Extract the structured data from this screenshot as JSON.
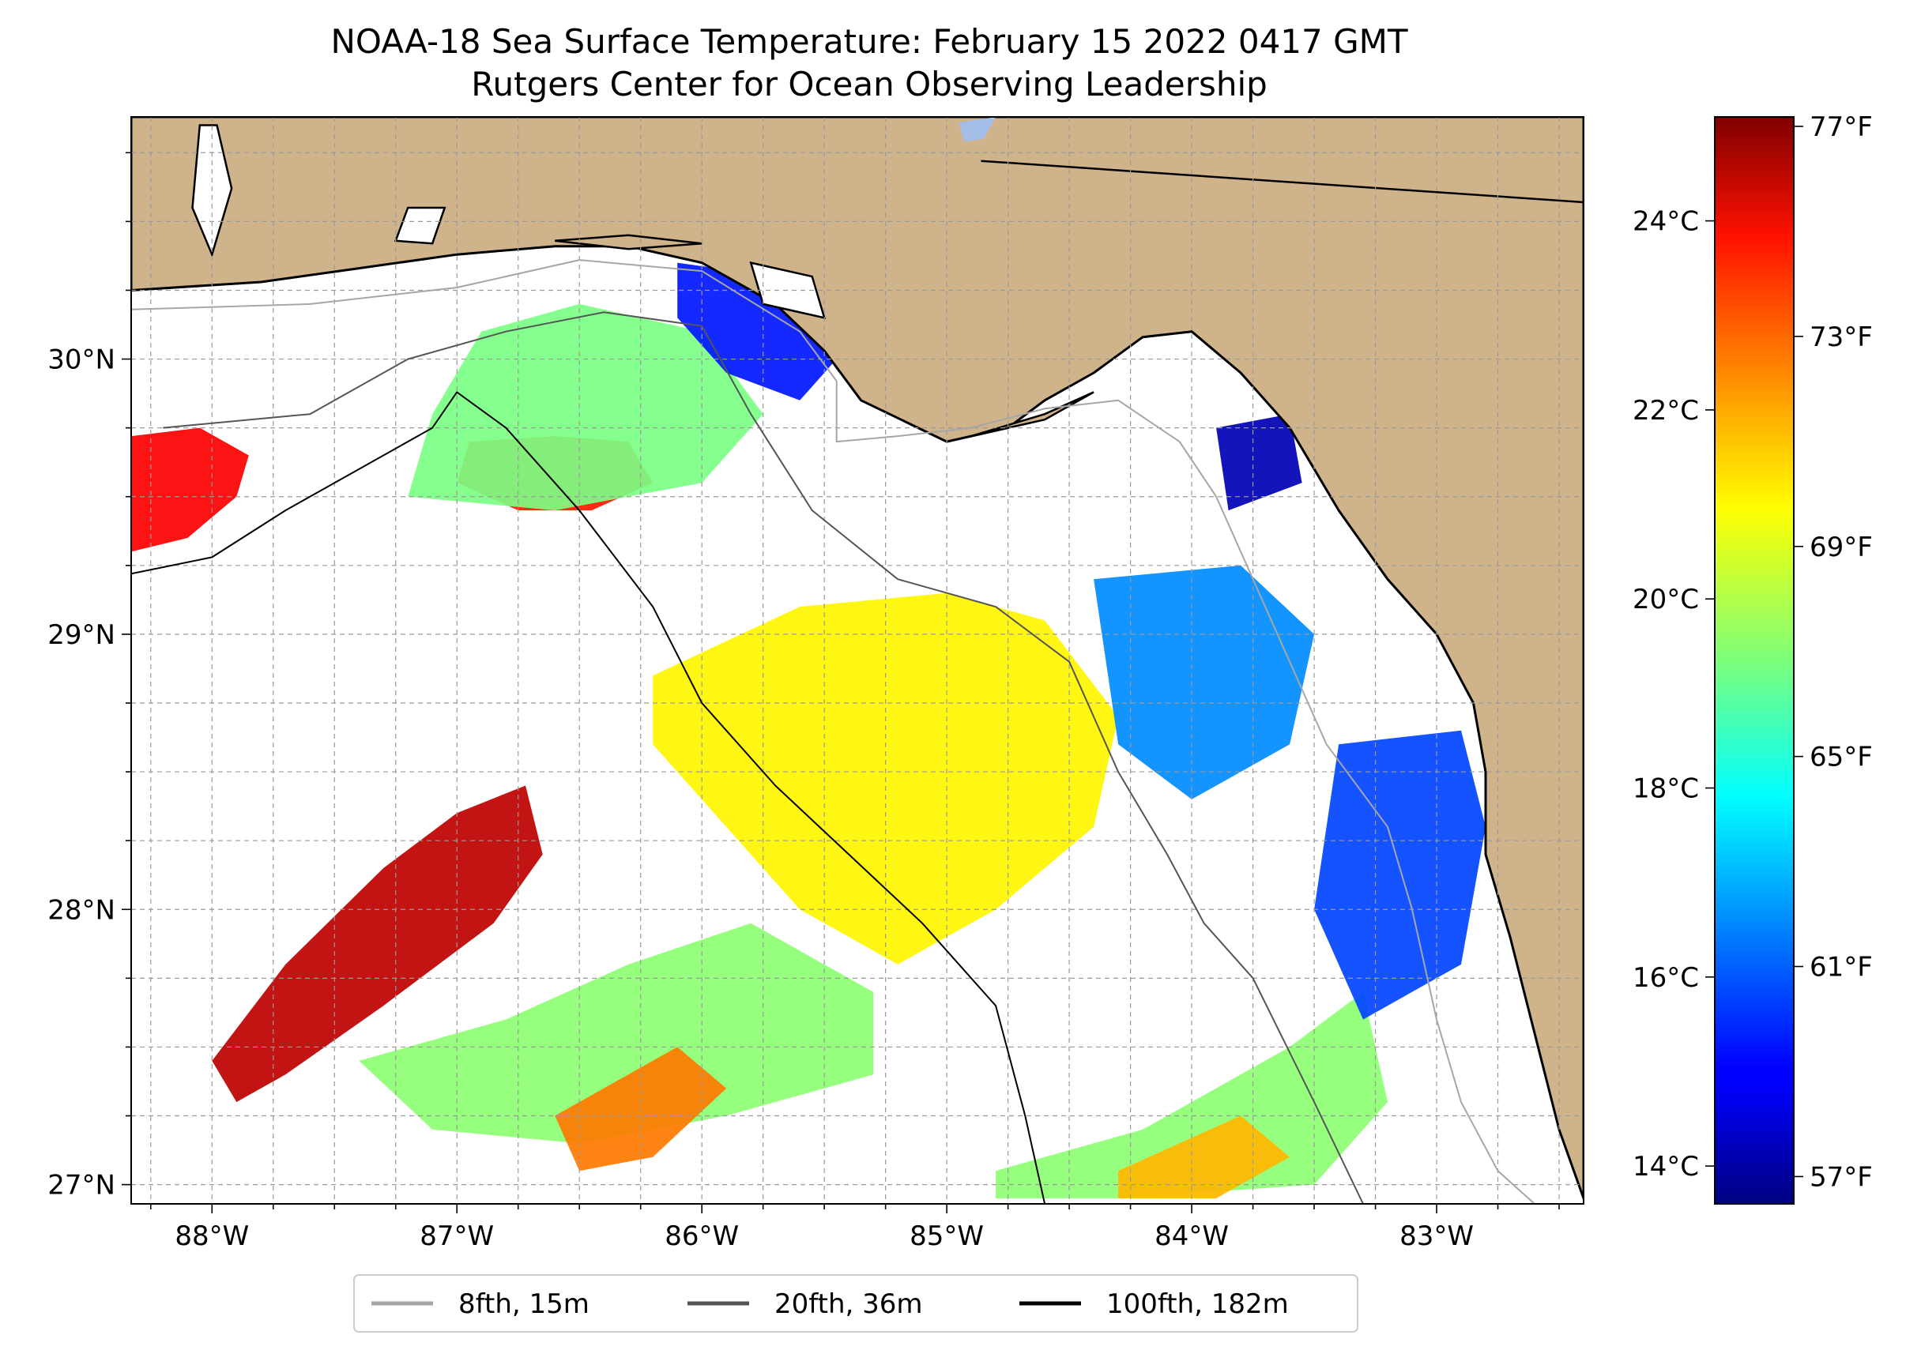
{
  "title": "NOAA-18 Sea Surface Temperature: February 15 2022 0417 GMT",
  "subtitle": "Rutgers Center for Ocean Observing Leadership",
  "colors": {
    "land": "#cfb38b",
    "lake": "#a4bde6",
    "coast": "#000000",
    "grid": "#9a9a9a",
    "iso_8fth": "#a6a6a6",
    "iso_20fth": "#555555",
    "iso_100fth": "#000000"
  },
  "map": {
    "lon_range": [
      -88.33,
      -82.4
    ],
    "lat_range": [
      26.93,
      30.88
    ],
    "lon_ticks": [
      {
        "value": -88,
        "label": "88°W"
      },
      {
        "value": -87,
        "label": "87°W"
      },
      {
        "value": -86,
        "label": "86°W"
      },
      {
        "value": -85,
        "label": "85°W"
      },
      {
        "value": -84,
        "label": "84°W"
      },
      {
        "value": -83,
        "label": "83°W"
      }
    ],
    "lat_ticks": [
      {
        "value": 27,
        "label": "27°N"
      },
      {
        "value": 28,
        "label": "28°N"
      },
      {
        "value": 29,
        "label": "29°N"
      },
      {
        "value": 30,
        "label": "30°N"
      }
    ],
    "grid_step_deg": 0.25
  },
  "colorbar": {
    "range_c": [
      13.6,
      25.1
    ],
    "celsius_ticks": [
      {
        "value": 14,
        "label": "14°C"
      },
      {
        "value": 16,
        "label": "16°C"
      },
      {
        "value": 18,
        "label": "18°C"
      },
      {
        "value": 20,
        "label": "20°C"
      },
      {
        "value": 22,
        "label": "22°C"
      },
      {
        "value": 24,
        "label": "24°C"
      }
    ],
    "fahrenheit_ticks": [
      {
        "value": 57,
        "label": "57°F"
      },
      {
        "value": 61,
        "label": "61°F"
      },
      {
        "value": 65,
        "label": "65°F"
      },
      {
        "value": 69,
        "label": "69°F"
      },
      {
        "value": 73,
        "label": "73°F"
      },
      {
        "value": 77,
        "label": "77°F"
      }
    ],
    "colormap": "jet"
  },
  "legend": {
    "placement": "bottom-center",
    "items": [
      {
        "label": "8fth, 15m",
        "color": "#a6a6a6"
      },
      {
        "label": "20fth, 36m",
        "color": "#555555"
      },
      {
        "label": "100fth, 182m",
        "color": "#000000"
      }
    ]
  },
  "sst_patches": [
    {
      "name": "sst-patch-deep-red-band",
      "c": 24.4,
      "poly": [
        [
          -88.0,
          27.45
        ],
        [
          -87.7,
          27.8
        ],
        [
          -87.3,
          28.15
        ],
        [
          -87.0,
          28.35
        ],
        [
          -86.72,
          28.45
        ],
        [
          -86.65,
          28.2
        ],
        [
          -86.85,
          27.95
        ],
        [
          -87.3,
          27.65
        ],
        [
          -87.7,
          27.4
        ],
        [
          -87.9,
          27.3
        ]
      ]
    },
    {
      "name": "sst-patch-northwest-red",
      "c": 23.7,
      "poly": [
        [
          -88.33,
          29.3
        ],
        [
          -88.1,
          29.35
        ],
        [
          -87.9,
          29.5
        ],
        [
          -87.85,
          29.65
        ],
        [
          -88.05,
          29.75
        ],
        [
          -88.33,
          29.72
        ]
      ]
    },
    {
      "name": "sst-patch-coast-red",
      "c": 23.4,
      "poly": [
        [
          -87.0,
          29.55
        ],
        [
          -86.75,
          29.45
        ],
        [
          -86.45,
          29.45
        ],
        [
          -86.2,
          29.55
        ],
        [
          -86.3,
          29.7
        ],
        [
          -86.6,
          29.72
        ],
        [
          -86.95,
          29.7
        ]
      ]
    },
    {
      "name": "sst-patch-northern-green",
      "c": 19.3,
      "poly": [
        [
          -87.2,
          29.5
        ],
        [
          -86.6,
          29.45
        ],
        [
          -86.0,
          29.55
        ],
        [
          -85.75,
          29.8
        ],
        [
          -86.0,
          30.1
        ],
        [
          -86.5,
          30.2
        ],
        [
          -86.9,
          30.1
        ],
        [
          -87.1,
          29.8
        ]
      ]
    },
    {
      "name": "sst-patch-panhandle-blue",
      "c": 15.3,
      "poly": [
        [
          -86.1,
          30.35
        ],
        [
          -85.7,
          30.3
        ],
        [
          -85.4,
          30.05
        ],
        [
          -85.6,
          29.85
        ],
        [
          -85.9,
          29.95
        ],
        [
          -86.1,
          30.15
        ]
      ]
    },
    {
      "name": "sst-patch-central-yellow",
      "c": 20.9,
      "poly": [
        [
          -86.2,
          28.85
        ],
        [
          -85.6,
          29.1
        ],
        [
          -85.0,
          29.15
        ],
        [
          -84.6,
          29.05
        ],
        [
          -84.3,
          28.7
        ],
        [
          -84.4,
          28.3
        ],
        [
          -84.8,
          28.0
        ],
        [
          -85.2,
          27.8
        ],
        [
          -85.6,
          28.0
        ],
        [
          -85.9,
          28.3
        ],
        [
          -86.2,
          28.6
        ]
      ]
    },
    {
      "name": "sst-patch-southwest-green",
      "c": 19.5,
      "poly": [
        [
          -87.4,
          27.45
        ],
        [
          -86.8,
          27.6
        ],
        [
          -86.3,
          27.8
        ],
        [
          -85.8,
          27.95
        ],
        [
          -85.3,
          27.7
        ],
        [
          -85.3,
          27.4
        ],
        [
          -85.9,
          27.25
        ],
        [
          -86.5,
          27.15
        ],
        [
          -87.1,
          27.2
        ]
      ]
    },
    {
      "name": "sst-patch-southwest-orange",
      "c": 22.3,
      "poly": [
        [
          -86.6,
          27.25
        ],
        [
          -86.1,
          27.5
        ],
        [
          -85.9,
          27.35
        ],
        [
          -86.2,
          27.1
        ],
        [
          -86.5,
          27.05
        ]
      ]
    },
    {
      "name": "sst-patch-south-green",
      "c": 19.5,
      "poly": [
        [
          -84.8,
          27.05
        ],
        [
          -84.2,
          27.2
        ],
        [
          -83.6,
          27.5
        ],
        [
          -83.3,
          27.7
        ],
        [
          -83.2,
          27.3
        ],
        [
          -83.5,
          27.0
        ],
        [
          -84.3,
          26.95
        ],
        [
          -84.8,
          26.95
        ]
      ]
    },
    {
      "name": "sst-patch-south-orange",
      "c": 21.6,
      "poly": [
        [
          -84.3,
          27.05
        ],
        [
          -83.8,
          27.25
        ],
        [
          -83.6,
          27.1
        ],
        [
          -83.9,
          26.95
        ],
        [
          -84.3,
          26.95
        ]
      ]
    },
    {
      "name": "sst-patch-bigbend-blue",
      "c": 16.6,
      "poly": [
        [
          -84.4,
          29.2
        ],
        [
          -83.8,
          29.25
        ],
        [
          -83.5,
          29.0
        ],
        [
          -83.6,
          28.6
        ],
        [
          -84.0,
          28.4
        ],
        [
          -84.3,
          28.6
        ]
      ]
    },
    {
      "name": "sst-patch-east-blue",
      "c": 15.8,
      "poly": [
        [
          -83.4,
          28.6
        ],
        [
          -82.9,
          28.65
        ],
        [
          -82.8,
          28.3
        ],
        [
          -82.9,
          27.8
        ],
        [
          -83.3,
          27.6
        ],
        [
          -83.5,
          28.0
        ]
      ]
    },
    {
      "name": "sst-patch-north-deep-blue",
      "c": 14.2,
      "poly": [
        [
          -83.9,
          29.75
        ],
        [
          -83.6,
          29.8
        ],
        [
          -83.55,
          29.55
        ],
        [
          -83.85,
          29.45
        ]
      ]
    }
  ],
  "land_polygon": [
    [
      -88.33,
      30.88
    ],
    [
      -88.33,
      30.25
    ],
    [
      -87.8,
      30.28
    ],
    [
      -87.4,
      30.33
    ],
    [
      -87.0,
      30.38
    ],
    [
      -86.6,
      30.41
    ],
    [
      -86.3,
      30.41
    ],
    [
      -86.0,
      30.35
    ],
    [
      -85.7,
      30.2
    ],
    [
      -85.5,
      30.03
    ],
    [
      -85.35,
      29.85
    ],
    [
      -85.0,
      29.7
    ],
    [
      -84.75,
      29.75
    ],
    [
      -84.6,
      29.85
    ],
    [
      -84.4,
      29.95
    ],
    [
      -84.2,
      30.08
    ],
    [
      -84.0,
      30.1
    ],
    [
      -83.8,
      29.95
    ],
    [
      -83.6,
      29.75
    ],
    [
      -83.4,
      29.45
    ],
    [
      -83.2,
      29.2
    ],
    [
      -83.0,
      29.0
    ],
    [
      -82.85,
      28.75
    ],
    [
      -82.8,
      28.5
    ],
    [
      -82.8,
      28.2
    ],
    [
      -82.7,
      27.9
    ],
    [
      -82.6,
      27.55
    ],
    [
      -82.5,
      27.2
    ],
    [
      -82.4,
      26.95
    ],
    [
      -82.4,
      30.88
    ]
  ],
  "lake_polygon": [
    [
      -84.95,
      30.86
    ],
    [
      -84.8,
      30.88
    ],
    [
      -84.85,
      30.8
    ],
    [
      -84.93,
      30.79
    ]
  ],
  "state_border": [
    [
      -84.86,
      30.72
    ],
    [
      -82.4,
      30.57
    ]
  ],
  "isobath_8fth": [
    [
      -88.33,
      30.18
    ],
    [
      -87.6,
      30.2
    ],
    [
      -87.0,
      30.26
    ],
    [
      -86.5,
      30.36
    ],
    [
      -86.0,
      30.32
    ],
    [
      -85.6,
      30.1
    ],
    [
      -85.45,
      29.92
    ],
    [
      -85.45,
      29.7
    ],
    [
      -85.2,
      29.72
    ],
    [
      -84.9,
      29.75
    ],
    [
      -84.6,
      29.82
    ],
    [
      -84.3,
      29.85
    ],
    [
      -84.05,
      29.7
    ],
    [
      -83.9,
      29.5
    ],
    [
      -83.75,
      29.2
    ],
    [
      -83.6,
      28.9
    ],
    [
      -83.45,
      28.6
    ],
    [
      -83.2,
      28.3
    ],
    [
      -83.1,
      28.0
    ],
    [
      -83.0,
      27.6
    ],
    [
      -82.9,
      27.3
    ],
    [
      -82.75,
      27.05
    ],
    [
      -82.6,
      26.93
    ]
  ],
  "isobath_20fth": [
    [
      -88.2,
      29.75
    ],
    [
      -87.6,
      29.8
    ],
    [
      -87.2,
      30.0
    ],
    [
      -86.8,
      30.1
    ],
    [
      -86.4,
      30.17
    ],
    [
      -86.0,
      30.12
    ],
    [
      -85.8,
      29.8
    ],
    [
      -85.55,
      29.45
    ],
    [
      -85.2,
      29.2
    ],
    [
      -84.8,
      29.1
    ],
    [
      -84.5,
      28.9
    ],
    [
      -84.3,
      28.5
    ],
    [
      -84.1,
      28.2
    ],
    [
      -83.95,
      27.95
    ],
    [
      -83.75,
      27.75
    ],
    [
      -83.5,
      27.3
    ],
    [
      -83.3,
      26.93
    ]
  ],
  "isobath_100fth": [
    [
      -88.33,
      29.22
    ],
    [
      -88.0,
      29.28
    ],
    [
      -87.7,
      29.45
    ],
    [
      -87.4,
      29.6
    ],
    [
      -87.1,
      29.75
    ],
    [
      -87.0,
      29.88
    ],
    [
      -86.8,
      29.75
    ],
    [
      -86.5,
      29.45
    ],
    [
      -86.2,
      29.1
    ],
    [
      -86.0,
      28.75
    ],
    [
      -85.7,
      28.45
    ],
    [
      -85.4,
      28.2
    ],
    [
      -85.1,
      27.95
    ],
    [
      -84.8,
      27.65
    ],
    [
      -84.68,
      27.25
    ],
    [
      -84.6,
      26.93
    ]
  ],
  "islands": [
    [
      [
        -86.6,
        30.43
      ],
      [
        -86.3,
        30.45
      ],
      [
        -86.0,
        30.42
      ],
      [
        -86.3,
        30.4
      ]
    ],
    [
      [
        -84.9,
        29.72
      ],
      [
        -84.6,
        29.8
      ],
      [
        -84.4,
        29.88
      ],
      [
        -84.6,
        29.78
      ]
    ]
  ],
  "bays": [
    [
      [
        -88.05,
        30.85
      ],
      [
        -87.98,
        30.85
      ],
      [
        -87.92,
        30.62
      ],
      [
        -88.0,
        30.38
      ],
      [
        -88.08,
        30.55
      ]
    ],
    [
      [
        -87.2,
        30.55
      ],
      [
        -87.05,
        30.55
      ],
      [
        -87.1,
        30.42
      ],
      [
        -87.25,
        30.43
      ]
    ],
    [
      [
        -85.8,
        30.35
      ],
      [
        -85.55,
        30.3
      ],
      [
        -85.5,
        30.15
      ],
      [
        -85.75,
        30.2
      ]
    ]
  ]
}
